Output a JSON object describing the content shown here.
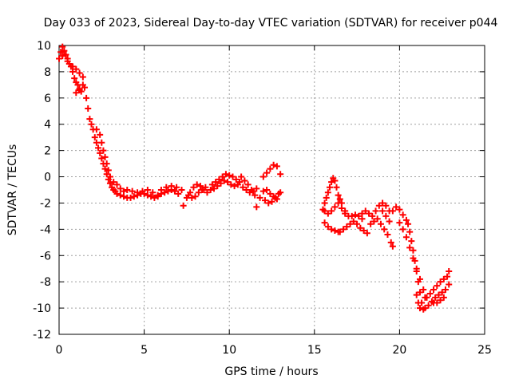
{
  "chart_data": {
    "type": "scatter",
    "title": "Day 033 of 2023, Sidereal Day-to-day VTEC variation (SDTVAR) for receiver p044",
    "xlabel": "GPS time / hours",
    "ylabel": "SDTVAR / TECUs",
    "xlim": [
      0,
      25
    ],
    "ylim": [
      -12,
      10
    ],
    "x_ticks": [
      "0",
      "5",
      "10",
      "15",
      "20",
      "25"
    ],
    "y_ticks": [
      "-12",
      "-10",
      "-8",
      "-6",
      "-4",
      "-2",
      "0",
      "2",
      "4",
      "6",
      "8",
      "10"
    ],
    "grid": true,
    "marker": "+",
    "color": "#ff0000",
    "series": [
      {
        "name": "SDTVAR",
        "points": [
          [
            0.0,
            9.0
          ],
          [
            0.1,
            9.5
          ],
          [
            0.2,
            9.9
          ],
          [
            0.3,
            9.6
          ],
          [
            0.4,
            9.3
          ],
          [
            0.5,
            9.0
          ],
          [
            0.6,
            8.6
          ],
          [
            0.7,
            8.4
          ],
          [
            0.8,
            8.0
          ],
          [
            0.9,
            7.5
          ],
          [
            1.0,
            7.2
          ],
          [
            1.1,
            7.0
          ],
          [
            1.2,
            6.7
          ],
          [
            1.3,
            6.5
          ],
          [
            0.2,
            9.2
          ],
          [
            0.5,
            8.8
          ],
          [
            0.8,
            8.4
          ],
          [
            1.0,
            8.2
          ],
          [
            1.2,
            7.9
          ],
          [
            1.4,
            7.6
          ],
          [
            1.5,
            6.8
          ],
          [
            1.6,
            6.0
          ],
          [
            1.7,
            5.2
          ],
          [
            1.8,
            4.4
          ],
          [
            1.0,
            6.4
          ],
          [
            1.2,
            6.6
          ],
          [
            1.4,
            7.0
          ],
          [
            1.9,
            4.0
          ],
          [
            2.0,
            3.6
          ],
          [
            2.1,
            3.0
          ],
          [
            2.2,
            2.6
          ],
          [
            2.3,
            2.2
          ],
          [
            2.4,
            1.8
          ],
          [
            2.5,
            1.4
          ],
          [
            2.6,
            1.0
          ],
          [
            2.7,
            0.6
          ],
          [
            2.8,
            0.2
          ],
          [
            2.9,
            -0.2
          ],
          [
            3.0,
            -0.5
          ],
          [
            3.1,
            -0.8
          ],
          [
            3.2,
            -1.0
          ],
          [
            3.3,
            -1.1
          ],
          [
            2.2,
            3.6
          ],
          [
            2.4,
            3.2
          ],
          [
            2.5,
            2.6
          ],
          [
            2.6,
            2.0
          ],
          [
            2.7,
            1.5
          ],
          [
            2.8,
            1.0
          ],
          [
            2.9,
            0.5
          ],
          [
            3.0,
            0.0
          ],
          [
            3.2,
            -0.4
          ],
          [
            3.4,
            -0.6
          ],
          [
            3.6,
            -0.9
          ],
          [
            3.8,
            -1.1
          ],
          [
            3.4,
            -1.3
          ],
          [
            3.6,
            -1.4
          ],
          [
            3.8,
            -1.5
          ],
          [
            4.0,
            -1.6
          ],
          [
            4.2,
            -1.6
          ],
          [
            4.4,
            -1.5
          ],
          [
            4.6,
            -1.4
          ],
          [
            4.8,
            -1.3
          ],
          [
            5.0,
            -1.3
          ],
          [
            5.2,
            -1.4
          ],
          [
            4.0,
            -1.0
          ],
          [
            4.3,
            -1.1
          ],
          [
            4.6,
            -1.2
          ],
          [
            4.9,
            -1.1
          ],
          [
            5.2,
            -1.0
          ],
          [
            5.5,
            -1.2
          ],
          [
            5.8,
            -1.4
          ],
          [
            5.4,
            -1.5
          ],
          [
            5.6,
            -1.6
          ],
          [
            5.8,
            -1.5
          ],
          [
            6.0,
            -1.3
          ],
          [
            6.2,
            -1.2
          ],
          [
            6.4,
            -1.1
          ],
          [
            6.6,
            -1.0
          ],
          [
            6.8,
            -1.1
          ],
          [
            7.0,
            -1.3
          ],
          [
            6.0,
            -1.0
          ],
          [
            6.3,
            -0.8
          ],
          [
            6.6,
            -0.7
          ],
          [
            6.9,
            -0.8
          ],
          [
            7.2,
            -1.0
          ],
          [
            7.3,
            -2.2
          ],
          [
            7.5,
            -1.6
          ],
          [
            7.7,
            -1.2
          ],
          [
            7.9,
            -0.8
          ],
          [
            8.1,
            -0.6
          ],
          [
            8.3,
            -0.7
          ],
          [
            8.5,
            -1.0
          ],
          [
            8.7,
            -1.2
          ],
          [
            8.9,
            -1.0
          ],
          [
            7.6,
            -1.4
          ],
          [
            7.8,
            -1.6
          ],
          [
            8.0,
            -1.5
          ],
          [
            8.2,
            -1.2
          ],
          [
            8.4,
            -1.0
          ],
          [
            8.6,
            -0.8
          ],
          [
            9.0,
            -0.6
          ],
          [
            9.2,
            -0.4
          ],
          [
            9.4,
            -0.2
          ],
          [
            9.6,
            0.0
          ],
          [
            9.8,
            0.2
          ],
          [
            10.0,
            0.1
          ],
          [
            10.2,
            0.0
          ],
          [
            10.4,
            -0.2
          ],
          [
            10.6,
            -0.4
          ],
          [
            9.1,
            -0.9
          ],
          [
            9.3,
            -0.7
          ],
          [
            9.5,
            -0.5
          ],
          [
            9.7,
            -0.3
          ],
          [
            9.9,
            -0.4
          ],
          [
            10.1,
            -0.6
          ],
          [
            10.3,
            -0.7
          ],
          [
            10.5,
            -0.6
          ],
          [
            10.7,
            0.0
          ],
          [
            10.9,
            -0.3
          ],
          [
            11.1,
            -0.6
          ],
          [
            11.3,
            -1.0
          ],
          [
            11.5,
            -1.4
          ],
          [
            11.6,
            -2.3
          ],
          [
            11.8,
            -1.6
          ],
          [
            12.0,
            -1.1
          ],
          [
            10.8,
            -0.8
          ],
          [
            11.0,
            -1.0
          ],
          [
            11.2,
            -1.2
          ],
          [
            11.4,
            -1.1
          ],
          [
            11.6,
            -0.9
          ],
          [
            12.0,
            0.0
          ],
          [
            12.2,
            0.3
          ],
          [
            12.4,
            0.6
          ],
          [
            12.6,
            0.9
          ],
          [
            12.8,
            0.8
          ],
          [
            13.0,
            0.2
          ],
          [
            12.1,
            -1.8
          ],
          [
            12.3,
            -2.0
          ],
          [
            12.5,
            -1.9
          ],
          [
            12.7,
            -1.6
          ],
          [
            12.9,
            -1.3
          ],
          [
            13.0,
            -1.2
          ],
          [
            12.2,
            -1.0
          ],
          [
            12.4,
            -1.3
          ],
          [
            12.6,
            -1.5
          ],
          [
            12.8,
            -1.7
          ],
          [
            15.6,
            -3.5
          ],
          [
            15.8,
            -3.8
          ],
          [
            16.0,
            -4.0
          ],
          [
            16.2,
            -4.1
          ],
          [
            16.4,
            -4.2
          ],
          [
            15.5,
            -2.5
          ],
          [
            15.6,
            -2.0
          ],
          [
            15.7,
            -1.6
          ],
          [
            15.8,
            -1.2
          ],
          [
            15.9,
            -0.8
          ],
          [
            16.0,
            -0.4
          ],
          [
            16.1,
            -0.1
          ],
          [
            16.2,
            -0.3
          ],
          [
            16.3,
            -0.8
          ],
          [
            15.6,
            -2.6
          ],
          [
            15.8,
            -2.8
          ],
          [
            16.0,
            -2.6
          ],
          [
            16.2,
            -2.3
          ],
          [
            16.4,
            -2.0
          ],
          [
            16.5,
            -1.7
          ],
          [
            16.6,
            -2.4
          ],
          [
            16.8,
            -2.8
          ],
          [
            16.4,
            -1.4
          ],
          [
            16.6,
            -2.0
          ],
          [
            16.8,
            -2.6
          ],
          [
            17.0,
            -3.0
          ],
          [
            17.2,
            -3.0
          ],
          [
            17.4,
            -2.9
          ],
          [
            17.6,
            -3.0
          ],
          [
            17.8,
            -3.2
          ],
          [
            16.5,
            -4.2
          ],
          [
            16.7,
            -4.0
          ],
          [
            16.9,
            -3.8
          ],
          [
            17.1,
            -3.6
          ],
          [
            17.3,
            -3.4
          ],
          [
            17.5,
            -3.6
          ],
          [
            17.7,
            -3.9
          ],
          [
            17.9,
            -4.1
          ],
          [
            18.1,
            -4.3
          ],
          [
            17.8,
            -2.8
          ],
          [
            18.0,
            -2.6
          ],
          [
            18.2,
            -2.8
          ],
          [
            18.4,
            -3.0
          ],
          [
            18.6,
            -2.6
          ],
          [
            18.8,
            -2.2
          ],
          [
            19.0,
            -2.0
          ],
          [
            19.2,
            -2.2
          ],
          [
            19.4,
            -2.6
          ],
          [
            18.3,
            -3.6
          ],
          [
            18.5,
            -3.4
          ],
          [
            18.7,
            -3.2
          ],
          [
            18.9,
            -3.6
          ],
          [
            19.1,
            -4.0
          ],
          [
            19.3,
            -4.4
          ],
          [
            19.5,
            -5.0
          ],
          [
            19.6,
            -5.3
          ],
          [
            19.0,
            -2.6
          ],
          [
            19.2,
            -3.0
          ],
          [
            19.4,
            -3.4
          ],
          [
            19.6,
            -2.6
          ],
          [
            19.8,
            -2.3
          ],
          [
            20.0,
            -2.5
          ],
          [
            20.2,
            -2.9
          ],
          [
            20.4,
            -3.3
          ],
          [
            20.0,
            -3.5
          ],
          [
            20.2,
            -4.0
          ],
          [
            20.4,
            -4.6
          ],
          [
            20.6,
            -5.4
          ],
          [
            20.8,
            -6.2
          ],
          [
            21.0,
            -7.0
          ],
          [
            21.2,
            -7.8
          ],
          [
            21.4,
            -8.6
          ],
          [
            21.5,
            -9.2
          ],
          [
            20.5,
            -3.6
          ],
          [
            20.6,
            -4.2
          ],
          [
            20.7,
            -4.9
          ],
          [
            20.8,
            -5.6
          ],
          [
            20.9,
            -6.4
          ],
          [
            21.0,
            -7.2
          ],
          [
            21.1,
            -8.0
          ],
          [
            21.2,
            -8.8
          ],
          [
            21.3,
            -9.6
          ],
          [
            21.4,
            -10.1
          ],
          [
            21.0,
            -9.0
          ],
          [
            21.1,
            -9.6
          ],
          [
            21.2,
            -10.0
          ],
          [
            21.5,
            -10.0
          ],
          [
            21.7,
            -9.8
          ],
          [
            21.9,
            -9.5
          ],
          [
            22.1,
            -9.2
          ],
          [
            22.3,
            -9.0
          ],
          [
            22.5,
            -8.8
          ],
          [
            22.7,
            -8.6
          ],
          [
            22.9,
            -8.2
          ],
          [
            21.6,
            -9.2
          ],
          [
            21.8,
            -8.9
          ],
          [
            22.0,
            -8.6
          ],
          [
            22.2,
            -8.3
          ],
          [
            22.4,
            -8.0
          ],
          [
            22.6,
            -7.8
          ],
          [
            22.8,
            -7.6
          ],
          [
            22.9,
            -7.2
          ],
          [
            22.0,
            -9.6
          ],
          [
            22.2,
            -9.6
          ],
          [
            22.4,
            -9.4
          ],
          [
            22.6,
            -9.2
          ]
        ]
      }
    ]
  }
}
